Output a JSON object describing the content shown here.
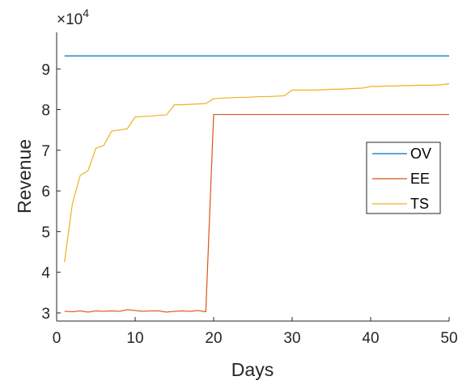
{
  "chart_data": {
    "type": "line",
    "title": "",
    "xlabel": "Days",
    "ylabel": "Revenue",
    "y_exponent": {
      "base": "×10",
      "power": "4"
    },
    "xlim": [
      0,
      50
    ],
    "ylim": [
      2.8,
      9.9
    ],
    "xticks": [
      0,
      10,
      20,
      30,
      40,
      50
    ],
    "xtick_labels": [
      "0",
      "10",
      "20",
      "30",
      "40",
      "50"
    ],
    "yticks": [
      3,
      4,
      5,
      6,
      7,
      8,
      9
    ],
    "ytick_labels": [
      "3",
      "4",
      "5",
      "6",
      "7",
      "8",
      "9"
    ],
    "grid": false,
    "legend_position": "right",
    "series": [
      {
        "name": "OV",
        "color": "#0072BD",
        "x": [
          1,
          50
        ],
        "values": [
          9.32,
          9.32
        ]
      },
      {
        "name": "EE",
        "color": "#D95319",
        "x": [
          1,
          2,
          3,
          4,
          5,
          6,
          7,
          8,
          9,
          10,
          11,
          12,
          13,
          14,
          15,
          16,
          17,
          18,
          19,
          20,
          21,
          22,
          23,
          24,
          25,
          26,
          27,
          28,
          29,
          30,
          31,
          32,
          33,
          34,
          35,
          36,
          37,
          38,
          39,
          40,
          41,
          42,
          43,
          44,
          45,
          46,
          47,
          48,
          49,
          50
        ],
        "values": [
          3.04,
          3.03,
          3.05,
          3.02,
          3.05,
          3.04,
          3.05,
          3.04,
          3.08,
          3.06,
          3.04,
          3.05,
          3.05,
          3.02,
          3.04,
          3.05,
          3.04,
          3.06,
          3.03,
          7.88,
          7.88,
          7.88,
          7.88,
          7.88,
          7.88,
          7.88,
          7.88,
          7.88,
          7.88,
          7.88,
          7.88,
          7.88,
          7.88,
          7.88,
          7.88,
          7.88,
          7.88,
          7.88,
          7.88,
          7.88,
          7.88,
          7.88,
          7.88,
          7.88,
          7.88,
          7.88,
          7.88,
          7.88,
          7.88,
          7.88
        ]
      },
      {
        "name": "TS",
        "color": "#EDB120",
        "x": [
          1,
          2,
          3,
          4,
          5,
          6,
          7,
          8,
          9,
          10,
          11,
          12,
          13,
          14,
          15,
          16,
          17,
          18,
          19,
          20,
          21,
          22,
          23,
          24,
          25,
          26,
          27,
          28,
          29,
          30,
          31,
          32,
          33,
          34,
          35,
          36,
          37,
          38,
          39,
          40,
          41,
          42,
          43,
          44,
          45,
          46,
          47,
          48,
          49,
          50
        ],
        "values": [
          4.25,
          5.68,
          6.38,
          6.5,
          7.05,
          7.12,
          7.47,
          7.5,
          7.53,
          7.82,
          7.83,
          7.84,
          7.86,
          7.87,
          8.12,
          8.12,
          8.13,
          8.14,
          8.15,
          8.27,
          8.28,
          8.29,
          8.3,
          8.3,
          8.31,
          8.32,
          8.32,
          8.33,
          8.34,
          8.48,
          8.48,
          8.48,
          8.48,
          8.49,
          8.5,
          8.5,
          8.51,
          8.52,
          8.53,
          8.57,
          8.57,
          8.58,
          8.58,
          8.59,
          8.59,
          8.6,
          8.6,
          8.6,
          8.61,
          8.64
        ]
      }
    ]
  }
}
